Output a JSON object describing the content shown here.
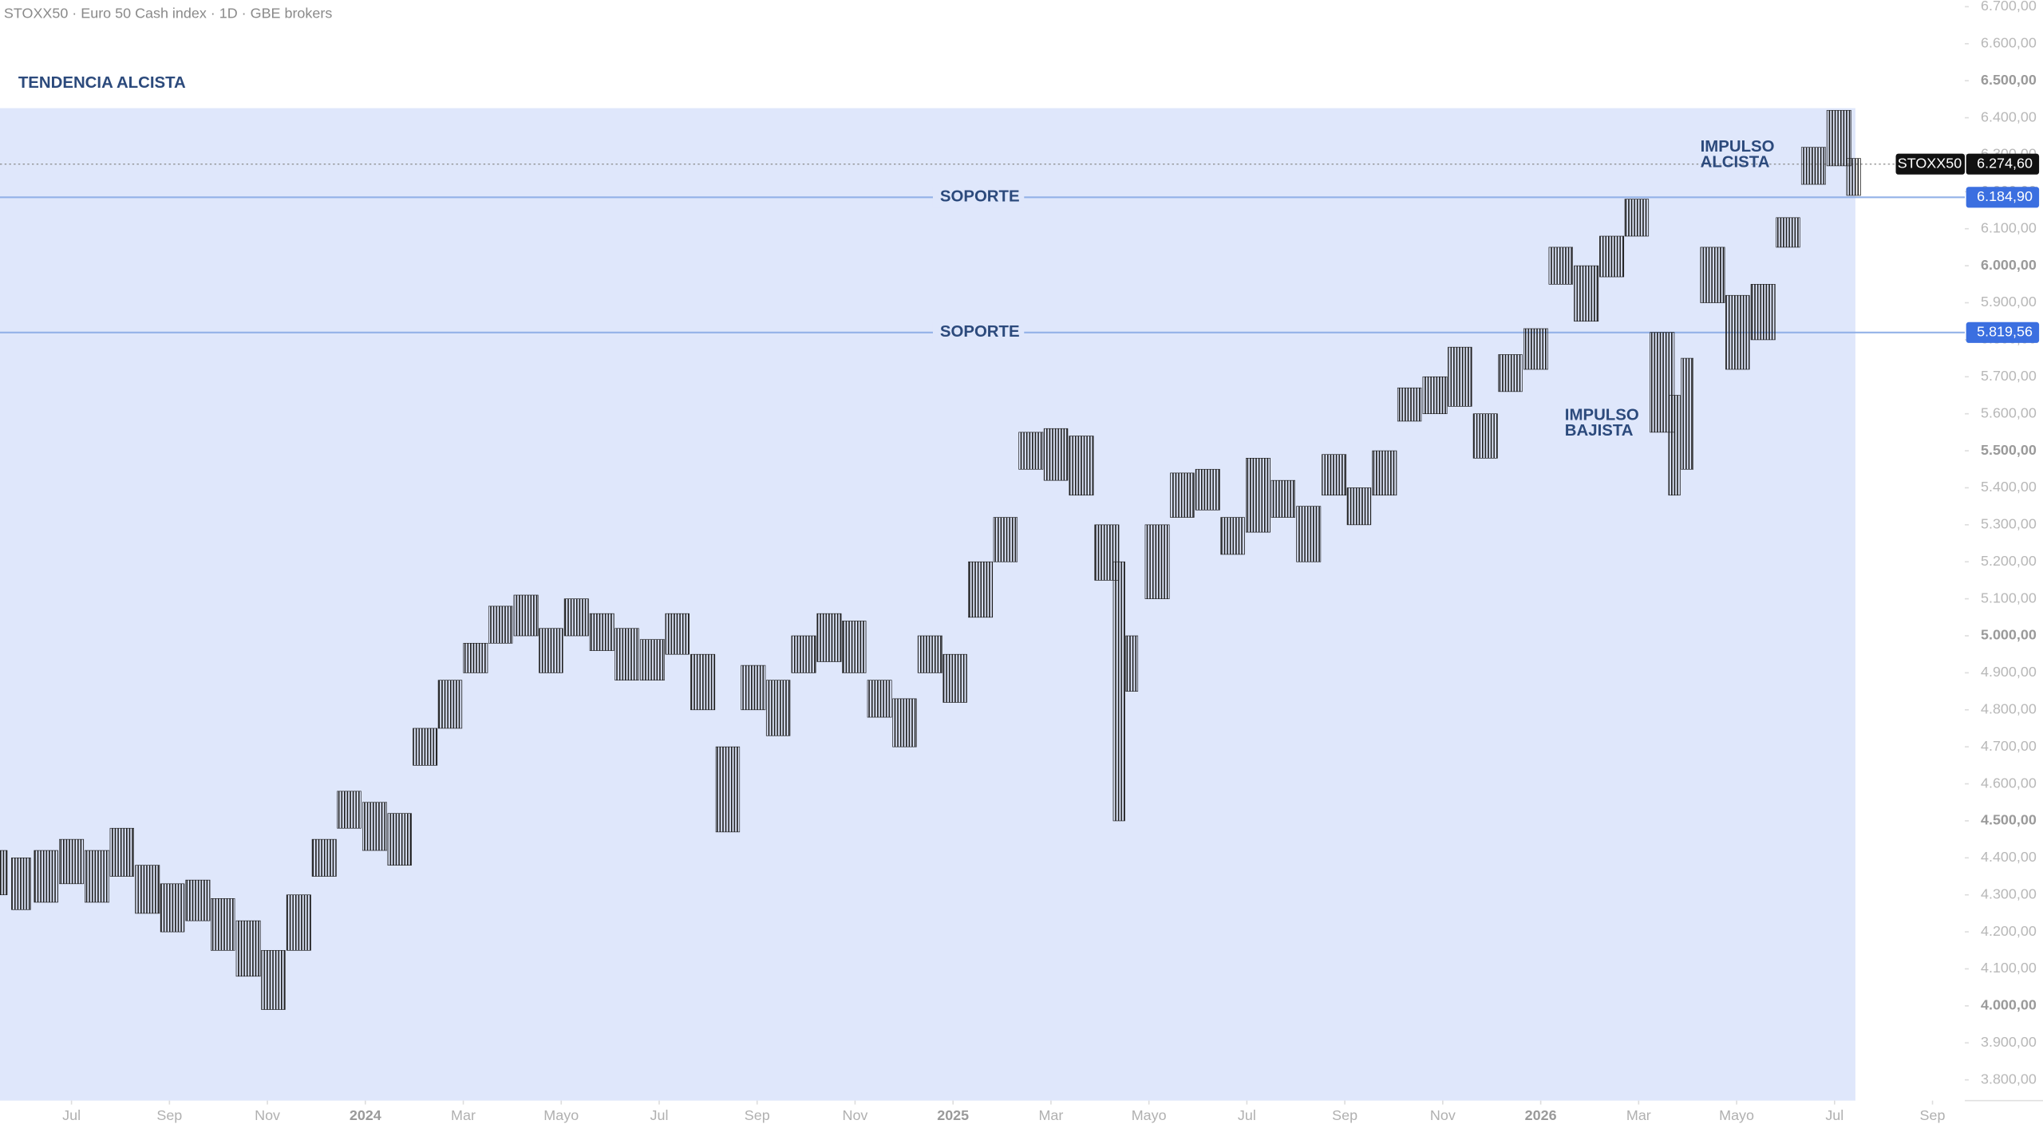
{
  "chart_data": {
    "type": "ohlc",
    "header": "STOXX50 · Euro 50 Cash index · 1D · GBE brokers",
    "annotations": [
      {
        "lines": [
          "TENDENCIA ALCISTA"
        ]
      },
      {
        "lines": [
          "IMPULSO",
          "ALCISTA"
        ]
      },
      {
        "lines": [
          "IMPULSO",
          "BAJISTA"
        ]
      }
    ],
    "levels": [
      {
        "label": "SOPORTE",
        "value": 6184.9,
        "value_label": "6.184,90"
      },
      {
        "label": "SOPORTE",
        "value": 5819.56,
        "value_label": "5.819,56"
      }
    ],
    "last_price": {
      "name": "STOXX50",
      "value": 6274.6,
      "label": "6.274,60"
    },
    "color": "#1f1f1f",
    "x": [
      -1.44,
      -1.03,
      -0.52,
      0,
      0.52,
      1.03,
      1.55,
      2.06,
      2.58,
      3.09,
      3.61,
      4.12,
      4.64,
      5.16,
      5.67,
      6.19,
      6.7,
      7.22,
      7.73,
      8.25,
      8.76,
      9.28,
      9.79,
      10.31,
      10.83,
      11.34,
      11.86,
      12.37,
      12.89,
      13.4,
      13.92,
      14.43,
      14.95,
      15.47,
      15.98,
      16.5,
      17.01,
      17.53,
      18.04,
      18.56,
      19.07,
      19.59,
      20.1,
      20.62,
      21.14,
      21.39,
      21.65,
      22.17,
      22.68,
      23.2,
      23.71,
      24.23,
      24.74,
      25.26,
      25.78,
      26.29,
      26.81,
      27.32,
      27.84,
      28.35,
      28.87,
      29.38,
      29.9,
      30.41,
      30.93,
      31.45,
      31.96,
      32.48,
      32.73,
      32.99,
      33.51,
      34.02,
      34.54,
      35.05,
      35.57,
      36.09,
      36.39
    ],
    "high": [
      4420,
      4400,
      4420,
      4450,
      4420,
      4480,
      4380,
      4330,
      4340,
      4290,
      4230,
      4150,
      4300,
      4450,
      4580,
      4550,
      4520,
      4750,
      4880,
      4980,
      5080,
      5110,
      5020,
      5100,
      5060,
      5020,
      4990,
      5060,
      4950,
      4700,
      4920,
      4880,
      5000,
      5060,
      5040,
      4880,
      4830,
      5000,
      4950,
      5200,
      5320,
      5550,
      5560,
      5540,
      5300,
      5200,
      5000,
      5300,
      5440,
      5450,
      5320,
      5480,
      5420,
      5350,
      5490,
      5400,
      5500,
      5670,
      5700,
      5780,
      5600,
      5760,
      5830,
      6050,
      6000,
      6080,
      6180,
      5820,
      5650,
      5750,
      6050,
      5920,
      5950,
      6130,
      6320,
      6420,
      6290
    ],
    "low": [
      4300,
      4260,
      4280,
      4330,
      4280,
      4350,
      4250,
      4200,
      4230,
      4150,
      4080,
      3990,
      4150,
      4350,
      4480,
      4420,
      4380,
      4650,
      4750,
      4900,
      4980,
      5000,
      4900,
      5000,
      4960,
      4880,
      4880,
      4950,
      4800,
      4470,
      4800,
      4730,
      4900,
      4930,
      4900,
      4780,
      4700,
      4900,
      4820,
      5050,
      5200,
      5450,
      5420,
      5380,
      5150,
      4500,
      4850,
      5100,
      5320,
      5340,
      5220,
      5280,
      5320,
      5200,
      5380,
      5300,
      5380,
      5580,
      5600,
      5620,
      5480,
      5660,
      5720,
      5950,
      5850,
      5970,
      6080,
      5550,
      5380,
      5450,
      5900,
      5720,
      5800,
      6050,
      6220,
      6270,
      6190
    ],
    "xlim": [
      -1.46,
      38.66
    ],
    "xticks": [
      {
        "value": 0,
        "label": "Jul"
      },
      {
        "value": 2,
        "label": "Sep"
      },
      {
        "value": 4,
        "label": "Nov"
      },
      {
        "value": 6,
        "label": "2024"
      },
      {
        "value": 8,
        "label": "Mar"
      },
      {
        "value": 10,
        "label": "Mayo"
      },
      {
        "value": 12,
        "label": "Jul"
      },
      {
        "value": 14,
        "label": "Sep"
      },
      {
        "value": 16,
        "label": "Nov"
      },
      {
        "value": 18,
        "label": "2025"
      },
      {
        "value": 20,
        "label": "Mar"
      },
      {
        "value": 22,
        "label": "Mayo"
      },
      {
        "value": 24,
        "label": "Jul"
      },
      {
        "value": 26,
        "label": "Sep"
      },
      {
        "value": 28,
        "label": "Nov"
      },
      {
        "value": 30,
        "label": "2026"
      },
      {
        "value": 32,
        "label": "Mar"
      },
      {
        "value": 34,
        "label": "Mayo"
      },
      {
        "value": 36,
        "label": "Jul"
      },
      {
        "value": 38,
        "label": "Sep"
      }
    ],
    "ylim": [
      3744,
      6718
    ],
    "yticks": [
      {
        "value": 3800,
        "label": "3.800,00"
      },
      {
        "value": 3900,
        "label": "3.900,00"
      },
      {
        "value": 4000,
        "label": "4.000,00"
      },
      {
        "value": 4100,
        "label": "4.100,00"
      },
      {
        "value": 4200,
        "label": "4.200,00"
      },
      {
        "value": 4300,
        "label": "4.300,00"
      },
      {
        "value": 4400,
        "label": "4.400,00"
      },
      {
        "value": 4500,
        "label": "4.500,00"
      },
      {
        "value": 4600,
        "label": "4.600,00"
      },
      {
        "value": 4700,
        "label": "4.700,00"
      },
      {
        "value": 4800,
        "label": "4.800,00"
      },
      {
        "value": 4900,
        "label": "4.900,00"
      },
      {
        "value": 5000,
        "label": "5.000,00"
      },
      {
        "value": 5100,
        "label": "5.100,00"
      },
      {
        "value": 5200,
        "label": "5.200,00"
      },
      {
        "value": 5300,
        "label": "5.300,00"
      },
      {
        "value": 5400,
        "label": "5.400,00"
      },
      {
        "value": 5500,
        "label": "5.500,00"
      },
      {
        "value": 5600,
        "label": "5.600,00"
      },
      {
        "value": 5700,
        "label": "5.700,00"
      },
      {
        "value": 5800,
        "label": "5.800,00"
      },
      {
        "value": 5900,
        "label": "5.900,00"
      },
      {
        "value": 6000,
        "label": "6.000,00"
      },
      {
        "value": 6100,
        "label": "6.100,00"
      },
      {
        "value": 6200,
        "label": "6.200,00"
      },
      {
        "value": 6300,
        "label": "6.300,00"
      },
      {
        "value": 6400,
        "label": "6.400,00"
      },
      {
        "value": 6500,
        "label": "6.500,00"
      },
      {
        "value": 6600,
        "label": "6.600,00"
      },
      {
        "value": 6700,
        "label": "6.700,00"
      }
    ]
  }
}
